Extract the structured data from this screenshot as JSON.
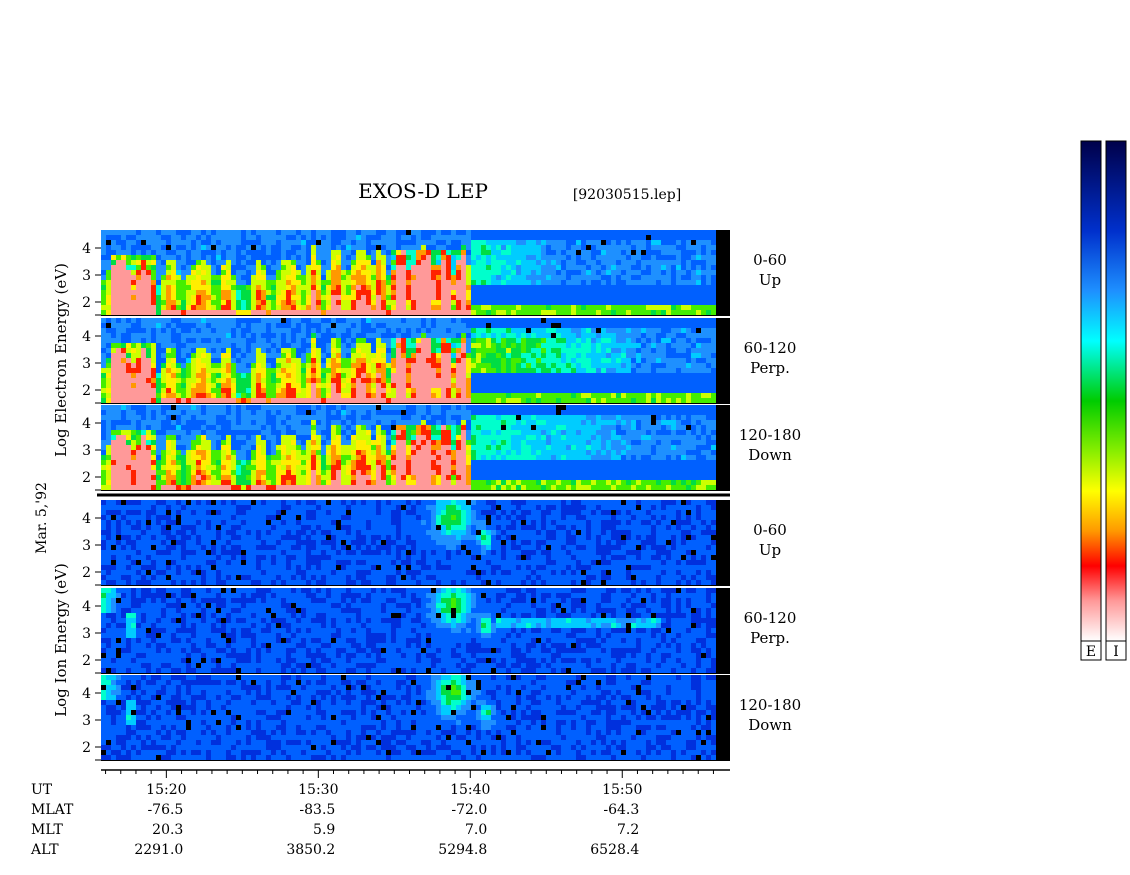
{
  "title": "EXOS-D LEP",
  "file_name": "[92030515.lep]",
  "date_label": "Mar. 5,'92",
  "electron_ylabel": [
    "Log",
    "Electron",
    "Energy",
    "(eV)"
  ],
  "ion_ylabel": [
    "Log",
    "Ion",
    "Energy",
    "(eV)"
  ],
  "colorbar_labels": [
    "E",
    "I"
  ],
  "chart_data": {
    "type": "heatmap",
    "x_axis": {
      "label": "UT",
      "ticks": [
        "15:20",
        "15:30",
        "15:40",
        "15:50"
      ]
    },
    "ephemeris": [
      {
        "label": "UT",
        "values": [
          "15:20",
          "15:30",
          "15:40",
          "15:50"
        ]
      },
      {
        "label": "MLAT",
        "values": [
          "-76.5",
          "-83.5",
          "-72.0",
          "-64.3"
        ]
      },
      {
        "label": "MLT",
        "values": [
          "20.3",
          "5.9",
          "7.0",
          "7.2"
        ]
      },
      {
        "label": "ALT",
        "values": [
          "2291.0",
          "3850.2",
          "5294.8",
          "6528.4"
        ]
      }
    ],
    "y_axis": {
      "scale": "log10",
      "ticks": [
        "2",
        "3",
        "4"
      ]
    },
    "panels": [
      {
        "species": "Electron",
        "pitch_range": "0-60",
        "direction": "Up"
      },
      {
        "species": "Electron",
        "pitch_range": "60-120",
        "direction": "Perp."
      },
      {
        "species": "Electron",
        "pitch_range": "120-180",
        "direction": "Down"
      },
      {
        "species": "Ion",
        "pitch_range": "0-60",
        "direction": "Up"
      },
      {
        "species": "Ion",
        "pitch_range": "60-120",
        "direction": "Perp."
      },
      {
        "species": "Ion",
        "pitch_range": "120-180",
        "direction": "Down"
      }
    ],
    "colorscale": [
      "#ffffff",
      "#ff0000",
      "#ff8800",
      "#ffff00",
      "#00cc00",
      "#00ffff",
      "#0055ff",
      "#0000aa",
      "#00004a"
    ]
  }
}
